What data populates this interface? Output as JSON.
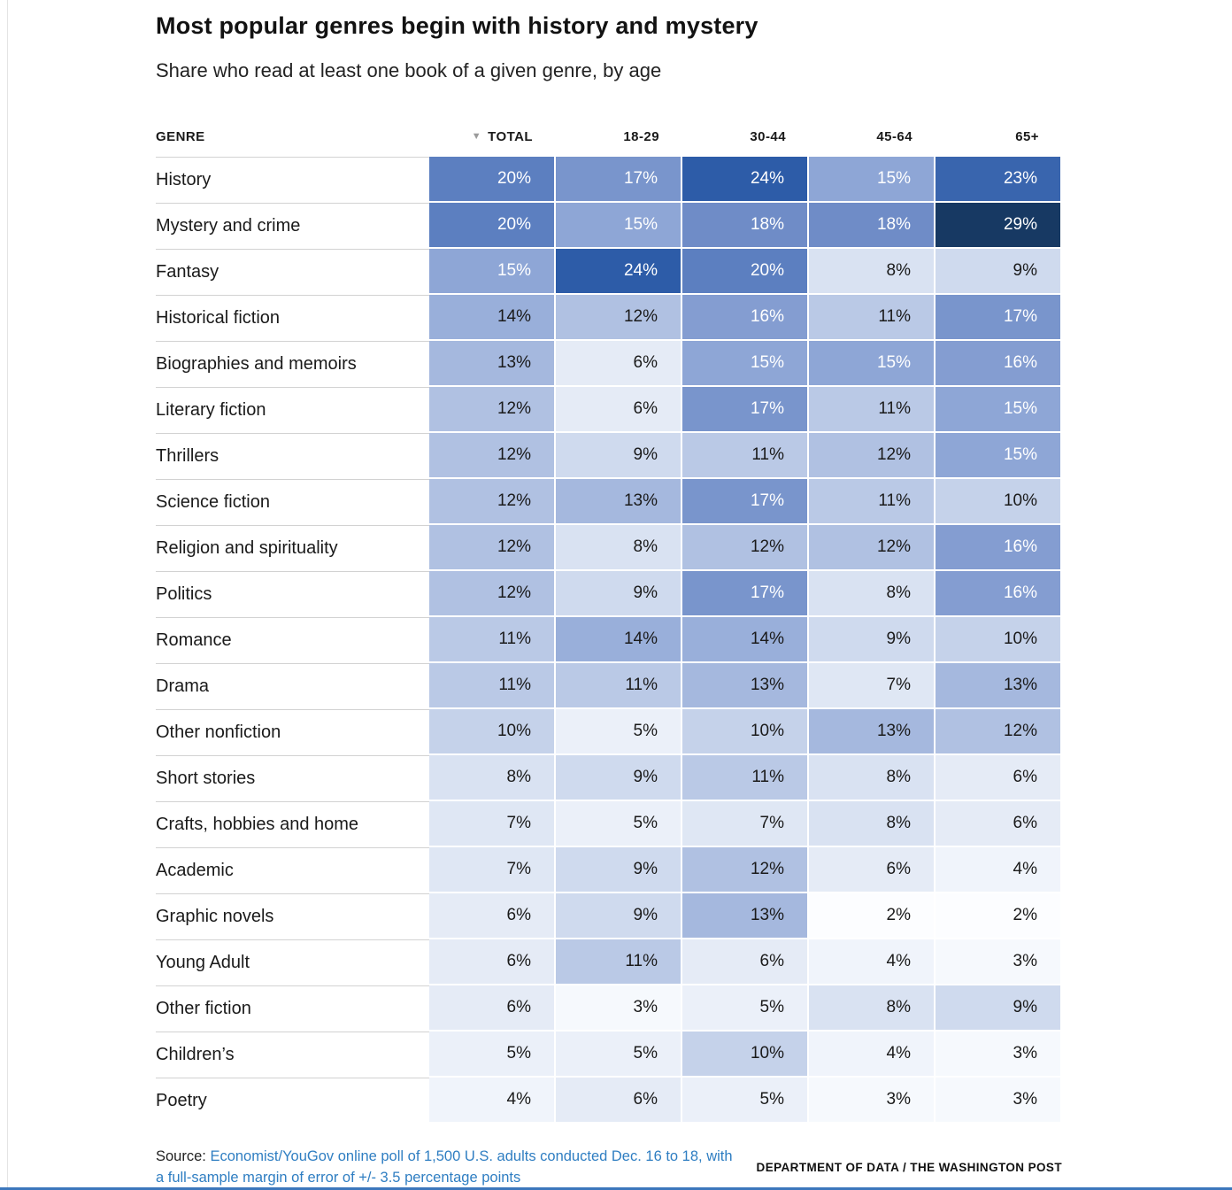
{
  "title": "Most popular genres begin with history and mystery",
  "subtitle": "Share who read at least one book of a given genre, by age",
  "table": {
    "genre_header": "GENRE",
    "sort_icon": "▼"
  },
  "chart_data": {
    "type": "heatmap",
    "title": "Most popular genres begin with history and mystery",
    "subtitle": "Share who read at least one book of a given genre, by age",
    "unit": "%",
    "value_range": [
      2,
      29
    ],
    "columns": [
      "TOTAL",
      "18-29",
      "30-44",
      "45-64",
      "65+"
    ],
    "rows": [
      {
        "genre": "History",
        "values": [
          20,
          17,
          24,
          15,
          23
        ]
      },
      {
        "genre": "Mystery and crime",
        "values": [
          20,
          15,
          18,
          18,
          29
        ]
      },
      {
        "genre": "Fantasy",
        "values": [
          15,
          24,
          20,
          8,
          9
        ]
      },
      {
        "genre": "Historical fiction",
        "values": [
          14,
          12,
          16,
          11,
          17
        ]
      },
      {
        "genre": "Biographies and memoirs",
        "values": [
          13,
          6,
          15,
          15,
          16
        ]
      },
      {
        "genre": "Literary fiction",
        "values": [
          12,
          6,
          17,
          11,
          15
        ]
      },
      {
        "genre": "Thrillers",
        "values": [
          12,
          9,
          11,
          12,
          15
        ]
      },
      {
        "genre": "Science fiction",
        "values": [
          12,
          13,
          17,
          11,
          10
        ]
      },
      {
        "genre": "Religion and spirituality",
        "values": [
          12,
          8,
          12,
          12,
          16
        ]
      },
      {
        "genre": "Politics",
        "values": [
          12,
          9,
          17,
          8,
          16
        ]
      },
      {
        "genre": "Romance",
        "values": [
          11,
          14,
          14,
          9,
          10
        ]
      },
      {
        "genre": "Drama",
        "values": [
          11,
          11,
          13,
          7,
          13
        ]
      },
      {
        "genre": "Other nonfiction",
        "values": [
          10,
          5,
          10,
          13,
          12
        ]
      },
      {
        "genre": "Short stories",
        "values": [
          8,
          9,
          11,
          8,
          6
        ]
      },
      {
        "genre": "Crafts, hobbies and home",
        "values": [
          7,
          5,
          7,
          8,
          6
        ]
      },
      {
        "genre": "Academic",
        "values": [
          7,
          9,
          12,
          6,
          4
        ]
      },
      {
        "genre": "Graphic novels",
        "values": [
          6,
          9,
          13,
          2,
          2
        ]
      },
      {
        "genre": "Young Adult",
        "values": [
          6,
          11,
          6,
          4,
          3
        ]
      },
      {
        "genre": "Other fiction",
        "values": [
          6,
          3,
          5,
          8,
          9
        ]
      },
      {
        "genre": "Children’s",
        "values": [
          5,
          5,
          10,
          4,
          3
        ]
      },
      {
        "genre": "Poetry",
        "values": [
          4,
          6,
          5,
          3,
          3
        ]
      }
    ]
  },
  "colors": {
    "white_text_threshold": 15,
    "dark_text": "#1a1a1a",
    "light_text": "#ffffff",
    "scale": [
      {
        "value": 2,
        "color": "#fcfdff"
      },
      {
        "value": 8,
        "color": "#d9e2f2"
      },
      {
        "value": 12,
        "color": "#b0c1e2"
      },
      {
        "value": 15,
        "color": "#8ea6d6"
      },
      {
        "value": 18,
        "color": "#6f8cc7"
      },
      {
        "value": 20,
        "color": "#5c7fc0"
      },
      {
        "value": 24,
        "color": "#2d5ca8"
      },
      {
        "value": 29,
        "color": "#173963"
      }
    ]
  },
  "footer": {
    "source_prefix": "Source: ",
    "source_link": "Economist/YouGov online poll of 1,500 U.S. adults conducted Dec. 16 to 18, with a full-sample margin of error of +/- 3.5 percentage points",
    "credit": "DEPARTMENT OF DATA / THE WASHINGTON POST"
  }
}
